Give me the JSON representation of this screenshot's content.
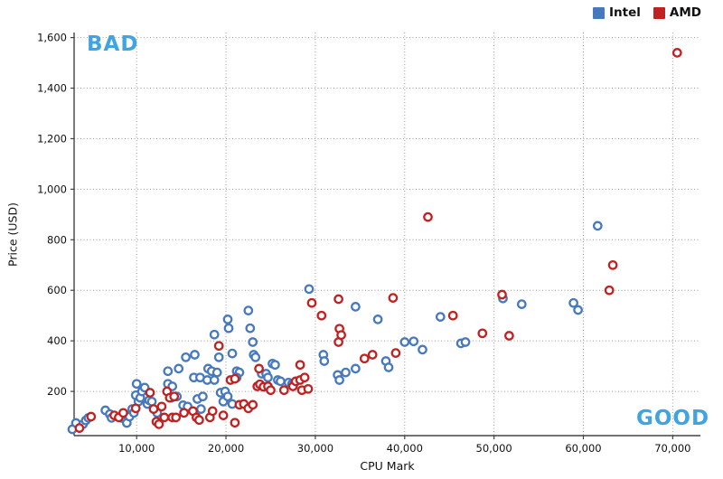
{
  "annotations": {
    "bad": "BAD",
    "good": "GOOD",
    "color": "#3fa5e2"
  },
  "chart_data": {
    "type": "scatter",
    "xlabel": "CPU Mark",
    "ylabel": "Price (USD)",
    "x_range": [
      3000,
      73100
    ],
    "y_range": [
      25,
      1620
    ],
    "grid": "dotted",
    "legend_position": "top-right",
    "x_ticks": [
      {
        "value": 10000,
        "label": "10,000"
      },
      {
        "value": 20000,
        "label": "20,000"
      },
      {
        "value": 30000,
        "label": "30,000"
      },
      {
        "value": 40000,
        "label": "40,000"
      },
      {
        "value": 50000,
        "label": "50,000"
      },
      {
        "value": 60000,
        "label": "60,000"
      },
      {
        "value": 70000,
        "label": "70,000"
      }
    ],
    "y_ticks": [
      {
        "value": 200,
        "label": "200"
      },
      {
        "value": 400,
        "label": "400"
      },
      {
        "value": 600,
        "label": "600"
      },
      {
        "value": 800,
        "label": "800"
      },
      {
        "value": 1000,
        "label": "1,000"
      },
      {
        "value": 1200,
        "label": "1,200"
      },
      {
        "value": 1400,
        "label": "1,400"
      },
      {
        "value": 1600,
        "label": "1,600"
      }
    ],
    "series": [
      {
        "name": "Intel",
        "color": "#4679bd",
        "points": [
          [
            2800,
            50
          ],
          [
            3200,
            75
          ],
          [
            4000,
            70
          ],
          [
            4300,
            85
          ],
          [
            4600,
            95
          ],
          [
            6500,
            125
          ],
          [
            7000,
            110
          ],
          [
            7200,
            95
          ],
          [
            8300,
            95
          ],
          [
            8600,
            110
          ],
          [
            8900,
            75
          ],
          [
            9200,
            100
          ],
          [
            9500,
            130
          ],
          [
            9700,
            115
          ],
          [
            9900,
            185
          ],
          [
            10000,
            230
          ],
          [
            10200,
            160
          ],
          [
            10400,
            175
          ],
          [
            10600,
            200
          ],
          [
            10900,
            215
          ],
          [
            11200,
            150
          ],
          [
            11400,
            165
          ],
          [
            11700,
            160
          ],
          [
            12300,
            115
          ],
          [
            13500,
            230
          ],
          [
            13500,
            280
          ],
          [
            13900,
            175
          ],
          [
            14000,
            220
          ],
          [
            14500,
            180
          ],
          [
            14700,
            290
          ],
          [
            15200,
            145
          ],
          [
            15500,
            335
          ],
          [
            15700,
            140
          ],
          [
            16500,
            345
          ],
          [
            16400,
            255
          ],
          [
            16800,
            170
          ],
          [
            17100,
            255
          ],
          [
            17200,
            130
          ],
          [
            17400,
            180
          ],
          [
            17900,
            245
          ],
          [
            18000,
            290
          ],
          [
            18400,
            280
          ],
          [
            18700,
            425
          ],
          [
            18700,
            245
          ],
          [
            19000,
            275
          ],
          [
            19200,
            335
          ],
          [
            19400,
            195
          ],
          [
            19700,
            160
          ],
          [
            19900,
            200
          ],
          [
            20200,
            180
          ],
          [
            20700,
            150
          ],
          [
            20200,
            485
          ],
          [
            20300,
            450
          ],
          [
            20700,
            350
          ],
          [
            21200,
            280
          ],
          [
            21500,
            275
          ],
          [
            21200,
            255
          ],
          [
            22500,
            520
          ],
          [
            22700,
            450
          ],
          [
            23000,
            395
          ],
          [
            23100,
            345
          ],
          [
            23300,
            335
          ],
          [
            24000,
            270
          ],
          [
            24500,
            270
          ],
          [
            24700,
            255
          ],
          [
            25200,
            310
          ],
          [
            25500,
            305
          ],
          [
            25800,
            245
          ],
          [
            26100,
            240
          ],
          [
            27000,
            235
          ],
          [
            27400,
            230
          ],
          [
            27700,
            235
          ],
          [
            29300,
            605
          ],
          [
            30900,
            345
          ],
          [
            31000,
            320
          ],
          [
            32500,
            265
          ],
          [
            32700,
            245
          ],
          [
            33400,
            275
          ],
          [
            34500,
            535
          ],
          [
            34500,
            290
          ],
          [
            37000,
            485
          ],
          [
            37900,
            320
          ],
          [
            38200,
            295
          ],
          [
            40000,
            395
          ],
          [
            41000,
            398
          ],
          [
            42000,
            365
          ],
          [
            44000,
            495
          ],
          [
            46300,
            390
          ],
          [
            46800,
            395
          ],
          [
            51000,
            568
          ],
          [
            53100,
            545
          ],
          [
            58900,
            550
          ],
          [
            59400,
            522
          ],
          [
            61600,
            855
          ]
        ]
      },
      {
        "name": "AMD",
        "color": "#c02222",
        "points": [
          [
            3600,
            55
          ],
          [
            4900,
            100
          ],
          [
            7500,
            105
          ],
          [
            8000,
            97
          ],
          [
            8500,
            115
          ],
          [
            9900,
            133
          ],
          [
            11500,
            195
          ],
          [
            11900,
            130
          ],
          [
            12200,
            80
          ],
          [
            12500,
            70
          ],
          [
            12800,
            140
          ],
          [
            13100,
            97
          ],
          [
            13400,
            200
          ],
          [
            13700,
            175
          ],
          [
            14000,
            97
          ],
          [
            14200,
            180
          ],
          [
            14400,
            97
          ],
          [
            15300,
            115
          ],
          [
            16300,
            122
          ],
          [
            16700,
            97
          ],
          [
            17000,
            87
          ],
          [
            18200,
            97
          ],
          [
            18500,
            122
          ],
          [
            19700,
            105
          ],
          [
            19200,
            380
          ],
          [
            20500,
            245
          ],
          [
            21000,
            250
          ],
          [
            21000,
            76
          ],
          [
            21500,
            147
          ],
          [
            22000,
            150
          ],
          [
            22500,
            133
          ],
          [
            23000,
            147
          ],
          [
            23500,
            220
          ],
          [
            23700,
            290
          ],
          [
            23800,
            228
          ],
          [
            24200,
            218
          ],
          [
            24700,
            220
          ],
          [
            25000,
            205
          ],
          [
            26500,
            205
          ],
          [
            27500,
            220
          ],
          [
            27800,
            240
          ],
          [
            28300,
            245
          ],
          [
            28300,
            305
          ],
          [
            28500,
            205
          ],
          [
            28800,
            255
          ],
          [
            29200,
            210
          ],
          [
            29600,
            550
          ],
          [
            30700,
            500
          ],
          [
            32600,
            565
          ],
          [
            32600,
            395
          ],
          [
            32700,
            448
          ],
          [
            32900,
            423
          ],
          [
            35500,
            330
          ],
          [
            36400,
            345
          ],
          [
            38700,
            570
          ],
          [
            39000,
            352
          ],
          [
            42600,
            890
          ],
          [
            45400,
            500
          ],
          [
            48700,
            430
          ],
          [
            50900,
            583
          ],
          [
            51700,
            420
          ],
          [
            62900,
            600
          ],
          [
            63300,
            700
          ],
          [
            70500,
            1540
          ]
        ]
      }
    ]
  }
}
